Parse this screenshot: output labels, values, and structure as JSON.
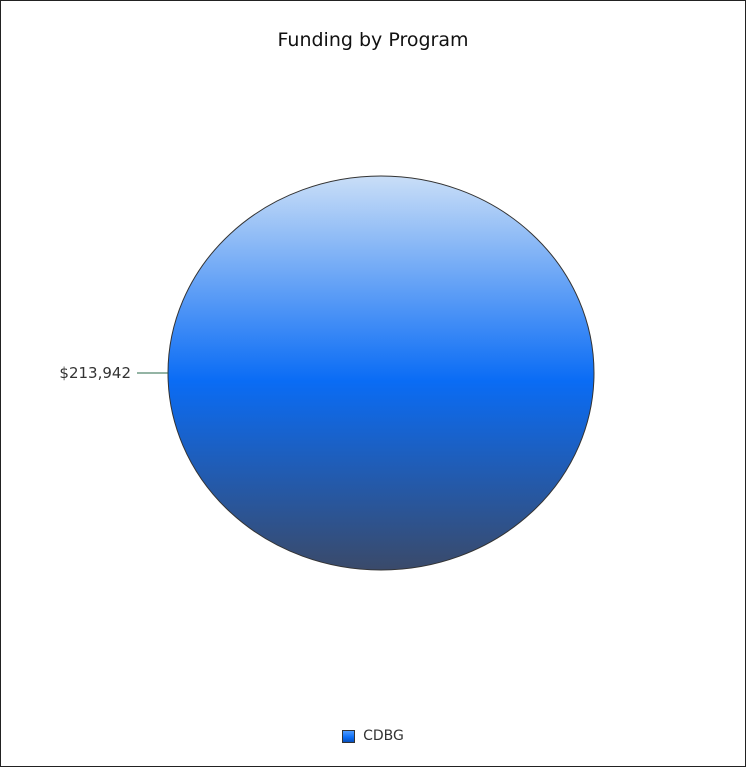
{
  "chart_data": {
    "type": "pie",
    "title": "Funding by Program",
    "slices": [
      {
        "label": "CDBG",
        "value": 213942,
        "value_label": "$213,942",
        "color": "#0a6cf5"
      }
    ],
    "legend": {
      "placement": "bottom",
      "entries": [
        "CDBG"
      ]
    },
    "colors": {
      "slice_top": "#c9def7",
      "slice_mid": "#0a6cf5",
      "slice_bottom": "#3a4a6a",
      "leader_line": "#2a6a4a",
      "outline": "#333333"
    }
  }
}
